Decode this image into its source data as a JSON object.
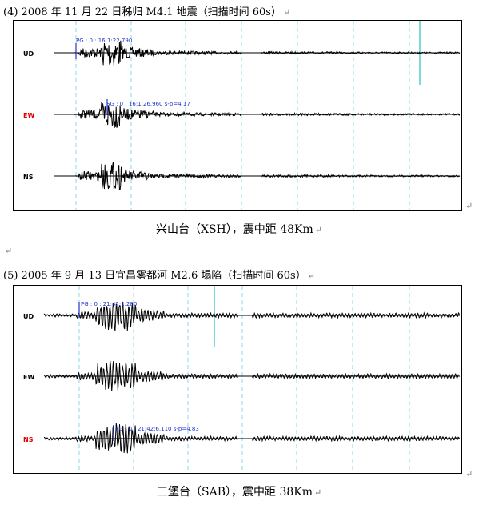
{
  "figures": [
    {
      "heading": "(4) 2008 年 11 月 22 日秭归 M4.1 地震（扫描时间 60s）",
      "caption": "兴山台（XSH），震中距 48Km",
      "channels": [
        {
          "name": "UD",
          "color": "#000000"
        },
        {
          "name": "EW",
          "color": "#e00000"
        },
        {
          "name": "NS",
          "color": "#000000"
        }
      ],
      "picks": [
        {
          "text": "PG : 0 : 16:1:22.790"
        },
        {
          "text": "SG : 0 : 16:1:26.960  s-p=4.17"
        }
      ]
    },
    {
      "heading": "(5) 2005 年 9 月 13 日宜昌雾都河 M2.6 塌陷（扫描时间 60s）",
      "caption": "三堡台（SAB），震中距 38Km",
      "channels": [
        {
          "name": "UD",
          "color": "#000000"
        },
        {
          "name": "EW",
          "color": "#000000"
        },
        {
          "name": "NS",
          "color": "#e00000"
        }
      ],
      "picks": [
        {
          "text": "PG : 0 : 21:42:1.280"
        },
        {
          "text": "SG : 0 : 21:42:6.110  s-p=4.83"
        }
      ]
    }
  ],
  "marks": {
    "return": "↵"
  },
  "colors": {
    "trace": "#000000",
    "pick": "#2233cc",
    "time_grid": "#88d8ee",
    "event_marker": "#55cccc",
    "highlight_channel": "#e00000"
  }
}
